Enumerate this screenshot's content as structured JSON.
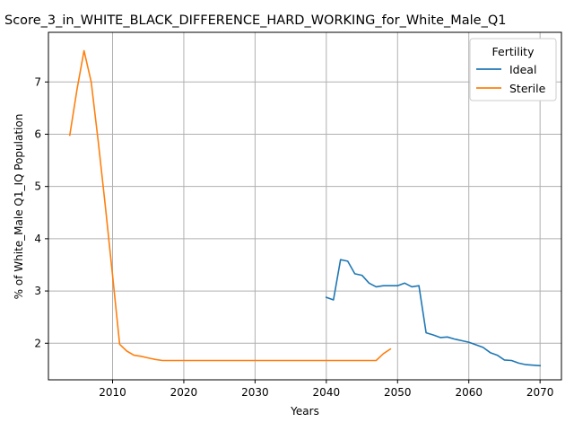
{
  "chart_data": {
    "type": "line",
    "title": "Score_3_in_WHITE_BLACK_DIFFERENCE_HARD_WORKING_for_White_Male_Q1",
    "xlabel": "Years",
    "ylabel": "% of White_Male Q1_IQ Population",
    "xlim": [
      2001,
      2073
    ],
    "ylim": [
      1.3,
      7.95
    ],
    "xticks": [
      2010,
      2020,
      2030,
      2040,
      2050,
      2060,
      2070
    ],
    "yticks": [
      2,
      3,
      4,
      5,
      6,
      7
    ],
    "grid": true,
    "legend": {
      "title": "Fertility",
      "placement": "top-right"
    },
    "series": [
      {
        "name": "Ideal",
        "color": "#1f77b4",
        "x": [
          2040,
          2041,
          2042,
          2043,
          2044,
          2045,
          2046,
          2047,
          2048,
          2049,
          2050,
          2051,
          2052,
          2053,
          2054,
          2055,
          2056,
          2057,
          2058,
          2059,
          2060,
          2061,
          2062,
          2063,
          2064,
          2065,
          2066,
          2067,
          2068,
          2069,
          2070
        ],
        "y": [
          2.88,
          2.83,
          3.6,
          3.57,
          3.33,
          3.3,
          3.15,
          3.08,
          3.1,
          3.1,
          3.1,
          3.15,
          3.08,
          3.1,
          2.2,
          2.16,
          2.11,
          2.12,
          2.08,
          2.05,
          2.02,
          1.97,
          1.92,
          1.82,
          1.77,
          1.68,
          1.67,
          1.62,
          1.59,
          1.58,
          1.57
        ]
      },
      {
        "name": "Sterile",
        "color": "#ff7f0e",
        "x": [
          2004,
          2005,
          2006,
          2007,
          2008,
          2009,
          2010,
          2011,
          2012,
          2013,
          2014,
          2015,
          2016,
          2017,
          2018,
          2019,
          2020,
          2025,
          2030,
          2035,
          2040,
          2045,
          2046,
          2047,
          2048,
          2049
        ],
        "y": [
          5.98,
          6.85,
          7.6,
          7.0,
          5.85,
          4.6,
          3.3,
          1.98,
          1.85,
          1.77,
          1.75,
          1.72,
          1.69,
          1.67,
          1.67,
          1.67,
          1.67,
          1.67,
          1.67,
          1.67,
          1.67,
          1.67,
          1.67,
          1.67,
          1.8,
          1.89
        ]
      }
    ]
  }
}
